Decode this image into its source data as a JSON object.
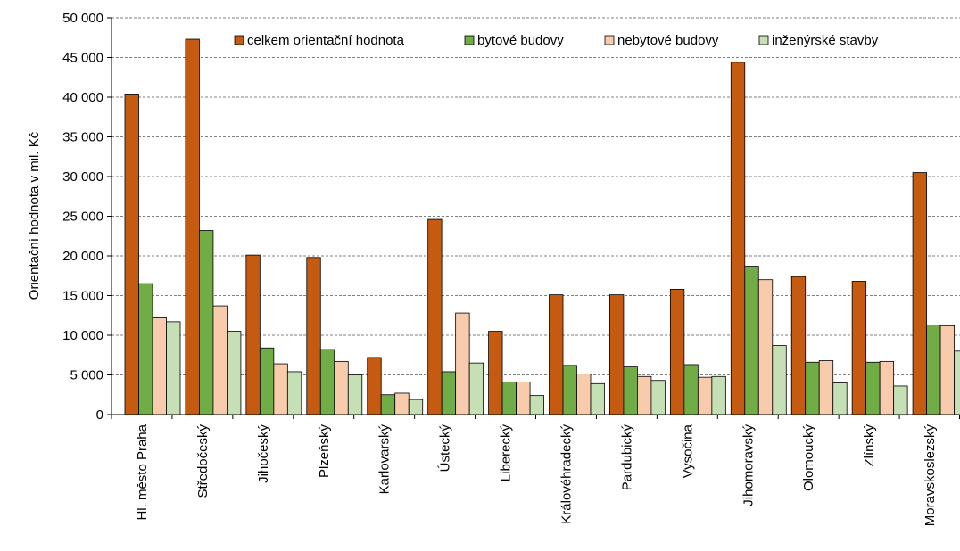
{
  "chart_data": {
    "type": "bar",
    "ylabel": "Orientační hodnota v mil. Kč",
    "xlabel": "",
    "ylim": [
      0,
      50000
    ],
    "yticks": [
      0,
      5000,
      10000,
      15000,
      20000,
      25000,
      30000,
      35000,
      40000,
      45000,
      50000
    ],
    "ytick_labels": [
      "0",
      "5 000",
      "10 000",
      "15 000",
      "20 000",
      "25 000",
      "30 000",
      "35 000",
      "40 000",
      "45 000",
      "50 000"
    ],
    "grid": true,
    "legend_position": "top",
    "categories": [
      "Hl. město Praha",
      "Středočeský",
      "Jihočeský",
      "Plzeňský",
      "Karlovarský",
      "Ústecký",
      "Liberecký",
      "Královéhradecký",
      "Pardubický",
      "Vysočina",
      "Jihomoravský",
      "Olomoucký",
      "Zlínský",
      "Moravskoslezský"
    ],
    "series": [
      {
        "name": "celkem orientační hodnota",
        "color": "#c55a11",
        "values": [
          40400,
          47300,
          20100,
          19800,
          7200,
          24600,
          10500,
          15100,
          15100,
          15800,
          44400,
          17400,
          16800,
          30500
        ]
      },
      {
        "name": "bytové budovy",
        "color": "#70ad47",
        "values": [
          16500,
          23200,
          8400,
          8200,
          2500,
          5400,
          4100,
          6200,
          6000,
          6300,
          18700,
          6600,
          6600,
          11300
        ]
      },
      {
        "name": "nebytové budovy",
        "color": "#f8cbad",
        "values": [
          12200,
          13700,
          6400,
          6700,
          2700,
          12800,
          4100,
          5100,
          4800,
          4700,
          17000,
          6800,
          6700,
          11200
        ]
      },
      {
        "name": "inženýrské stavby",
        "color": "#c5e0b4",
        "values": [
          11700,
          10500,
          5400,
          5000,
          1900,
          6500,
          2400,
          3900,
          4300,
          4800,
          8700,
          4000,
          3600,
          8000
        ]
      }
    ]
  }
}
